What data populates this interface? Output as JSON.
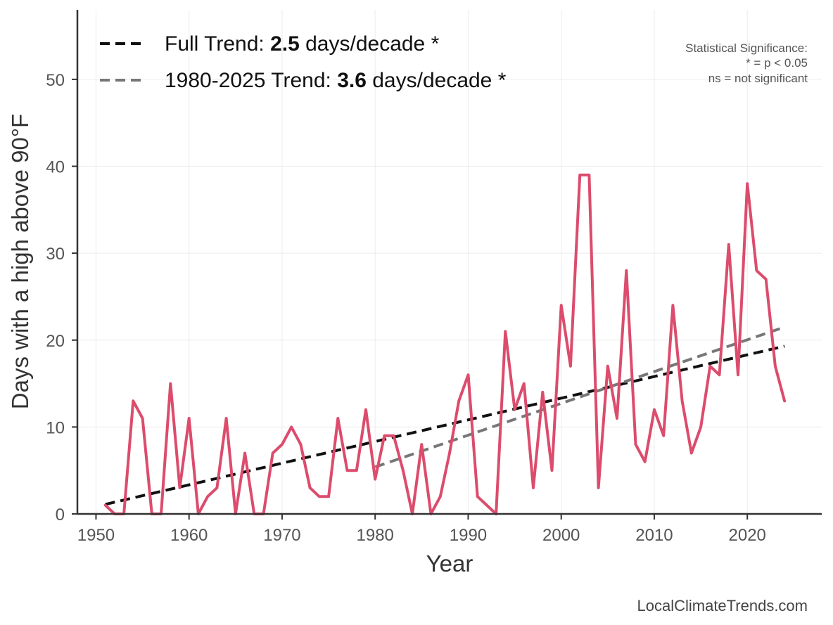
{
  "chart_data": {
    "type": "line",
    "title": "",
    "xlabel": "Year",
    "ylabel": "Days with a high above 90°F",
    "xlim": [
      1948,
      2028
    ],
    "ylim": [
      0,
      58
    ],
    "xticks": [
      1950,
      1960,
      1970,
      1980,
      1990,
      2000,
      2010,
      2020
    ],
    "yticks": [
      0,
      10,
      20,
      30,
      40,
      50
    ],
    "grid": true,
    "series": [
      {
        "color": "#dc4c6c",
        "x": [
          1951,
          1952,
          1953,
          1954,
          1955,
          1956,
          1957,
          1958,
          1959,
          1960,
          1961,
          1962,
          1963,
          1964,
          1965,
          1966,
          1967,
          1968,
          1969,
          1970,
          1971,
          1972,
          1973,
          1974,
          1975,
          1976,
          1977,
          1978,
          1979,
          1980,
          1981,
          1982,
          1983,
          1984,
          1985,
          1986,
          1987,
          1988,
          1989,
          1990,
          1991,
          1992,
          1993,
          1994,
          1995,
          1996,
          1997,
          1998,
          1999,
          2000,
          2001,
          2002,
          2003,
          2004,
          2005,
          2006,
          2007,
          2008,
          2009,
          2010,
          2011,
          2012,
          2013,
          2014,
          2015,
          2016,
          2017,
          2018,
          2019,
          2020,
          2021,
          2022,
          2023,
          2024
        ],
        "y": [
          1,
          0,
          0,
          13,
          11,
          0,
          0,
          15,
          3,
          11,
          0,
          2,
          3,
          11,
          0,
          7,
          0,
          0,
          7,
          8,
          10,
          8,
          3,
          2,
          2,
          11,
          5,
          5,
          12,
          4,
          9,
          9,
          5,
          0,
          8,
          0,
          2,
          7,
          13,
          16,
          2,
          1,
          0,
          21,
          12,
          15,
          3,
          14,
          5,
          24,
          17,
          39,
          39,
          3,
          17,
          11,
          28,
          8,
          6,
          12,
          9,
          24,
          13,
          7,
          10,
          17,
          16,
          31,
          16,
          38,
          28,
          27,
          17,
          13
        ]
      }
    ],
    "trends": [
      {
        "label_prefix": "Full Trend: ",
        "value": "2.5",
        "label_suffix": " days/decade *",
        "x": [
          1951,
          2024
        ],
        "y": [
          1.1,
          19.3
        ],
        "color": "#111111"
      },
      {
        "label_prefix": "1980-2025 Trend: ",
        "value": "3.6",
        "label_suffix": " days/decade *",
        "x": [
          1980,
          2024
        ],
        "y": [
          5.4,
          21.5
        ],
        "color": "#777777"
      }
    ],
    "legend_position": "top-left",
    "annotations": {
      "significance": [
        "Statistical Significance:",
        "* = p < 0.05",
        "ns = not significant"
      ],
      "credit": "LocalClimateTrends.com"
    }
  }
}
